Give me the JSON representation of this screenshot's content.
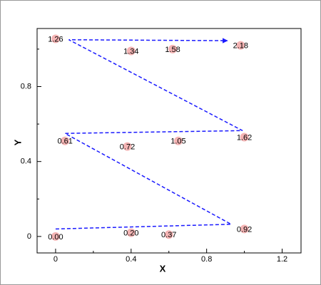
{
  "chart_data": {
    "type": "scatter",
    "x_label": "X",
    "y_label": "Y",
    "xlim": [
      -0.098,
      1.3
    ],
    "ylim": [
      -0.088,
      1.11
    ],
    "xticks": [
      0,
      0.4,
      0.8,
      1.2
    ],
    "yticks": [
      0,
      0.4,
      0.8
    ],
    "xminorticks": [
      0.2,
      0.6,
      1.0
    ],
    "yminorticks": [
      0.2,
      0.6,
      1.0
    ],
    "series": [
      {
        "color": "#f4b4b4",
        "x": [
          0,
          0.4,
          0.6,
          1.0,
          0.05,
          0.38,
          0.65,
          1.0,
          0.0,
          0.4,
          0.62,
          0.98
        ],
        "values": [
          0,
          0.02,
          0.01,
          0.04,
          0.51,
          0.48,
          0.51,
          0.53,
          1.055,
          0.99,
          1.0,
          1.02
        ],
        "labels": [
          "0.00",
          "0.20",
          "0.37",
          "0.92",
          "0.61",
          "0.72",
          "1.05",
          "1.62",
          "1.26",
          "1.34",
          "1.58",
          "2.18"
        ]
      },
      {
        "type": "line",
        "color": "#1a1aff",
        "x": [
          0,
          0.93,
          0.05,
          0.99,
          0.07,
          0.91
        ],
        "values": [
          0.04,
          0.065,
          0.55,
          0.565,
          1.05,
          1.045
        ]
      }
    ]
  }
}
